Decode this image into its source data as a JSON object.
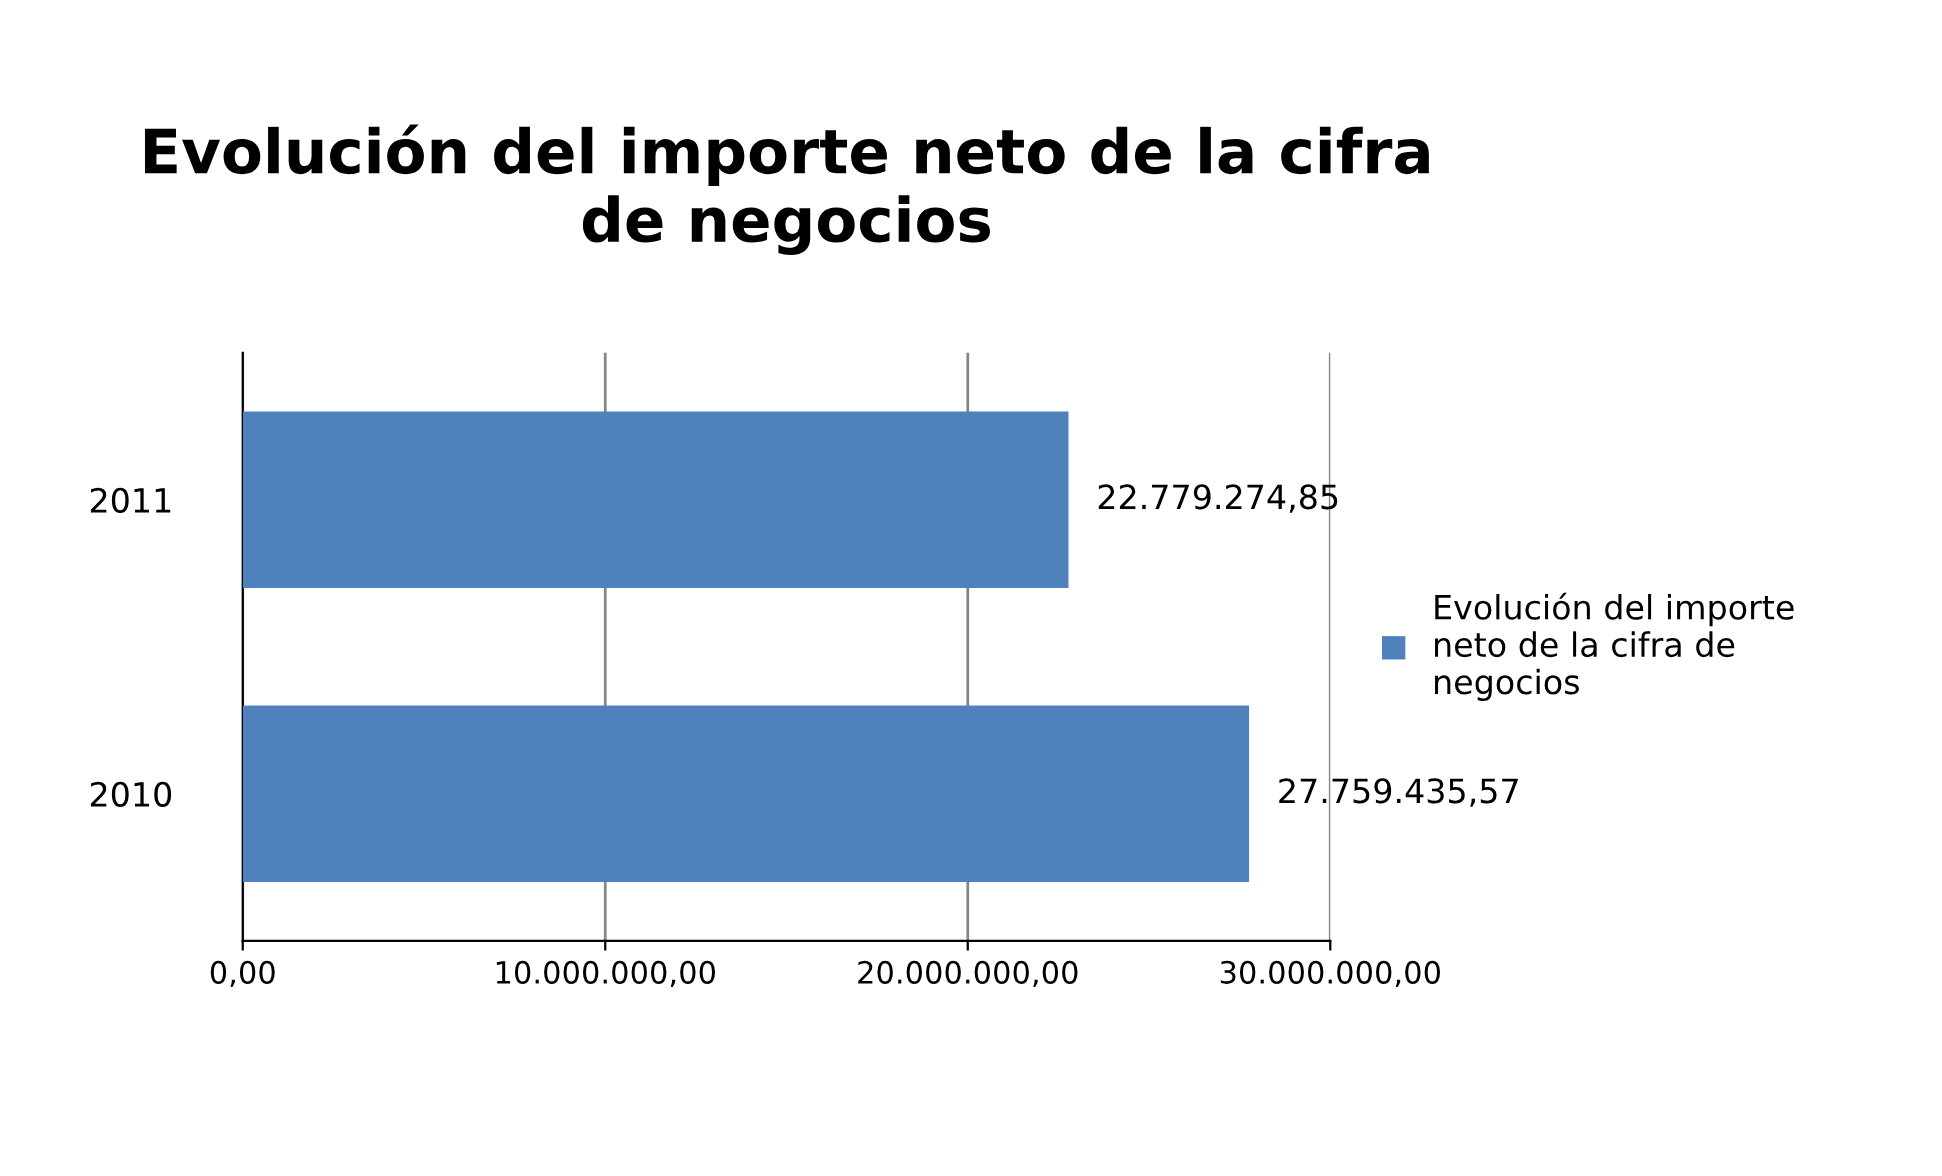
{
  "chart_data": {
    "type": "bar",
    "orientation": "horizontal",
    "title": "Evolución del importe neto de la cifra\nde negocios",
    "categories": [
      "2011",
      "2010"
    ],
    "series": [
      {
        "name": "Evolución del importe\nneto de la cifra de\nnegocios",
        "color": "#4f81bd",
        "values": [
          22779274.85,
          27759435.57
        ],
        "value_labels": [
          "22.779.274,85",
          "27.759.435,57"
        ]
      }
    ],
    "xlim": [
      0,
      30000000
    ],
    "xticks": [
      {
        "value": 0,
        "label": "0,00"
      },
      {
        "value": 10000000,
        "label": "10.000.000,00"
      },
      {
        "value": 20000000,
        "label": "20.000.000,00"
      },
      {
        "value": 30000000,
        "label": "30.000.000,00"
      }
    ],
    "grid": "x",
    "legend": "right"
  }
}
